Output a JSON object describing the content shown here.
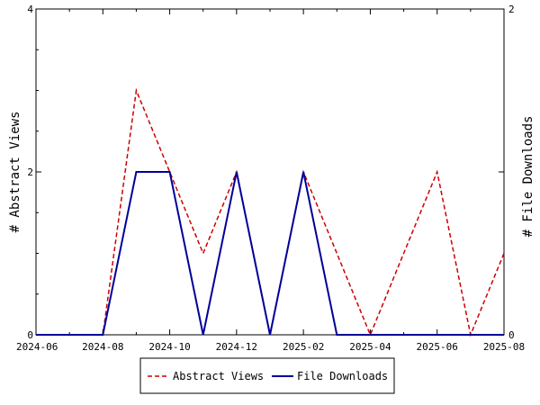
{
  "chart_data": {
    "type": "line",
    "x": [
      "2024-06",
      "2024-07",
      "2024-08",
      "2024-09",
      "2024-10",
      "2024-11",
      "2024-12",
      "2025-01",
      "2025-02",
      "2025-03",
      "2025-04",
      "2025-05",
      "2025-06",
      "2025-07",
      "2025-08"
    ],
    "x_ticks": [
      "2024-06",
      "2024-08",
      "2024-10",
      "2024-12",
      "2025-02",
      "2025-04",
      "2025-06",
      "2025-08"
    ],
    "series": [
      {
        "name": "Abstract Views",
        "axis": "left",
        "color": "#cc0000",
        "dash": "dashed",
        "values": [
          0,
          0,
          0,
          3,
          2,
          1,
          2,
          0,
          2,
          1,
          0,
          1,
          2,
          0,
          1
        ]
      },
      {
        "name": "File Downloads",
        "axis": "right",
        "color": "#000099",
        "dash": "solid",
        "values": [
          0,
          0,
          0,
          1,
          1,
          0,
          1,
          0,
          1,
          0,
          0,
          0,
          0,
          0,
          0
        ]
      }
    ],
    "ylabel_left": "# Abstract Views",
    "ylabel_right": "# File Downloads",
    "ylim_left": [
      0,
      4
    ],
    "yticks_left": [
      "0",
      "2",
      "4"
    ],
    "ylim_right": [
      0,
      2
    ],
    "yticks_right": [
      "0",
      "1",
      "2"
    ],
    "grid": false,
    "legend_position": "bottom"
  }
}
